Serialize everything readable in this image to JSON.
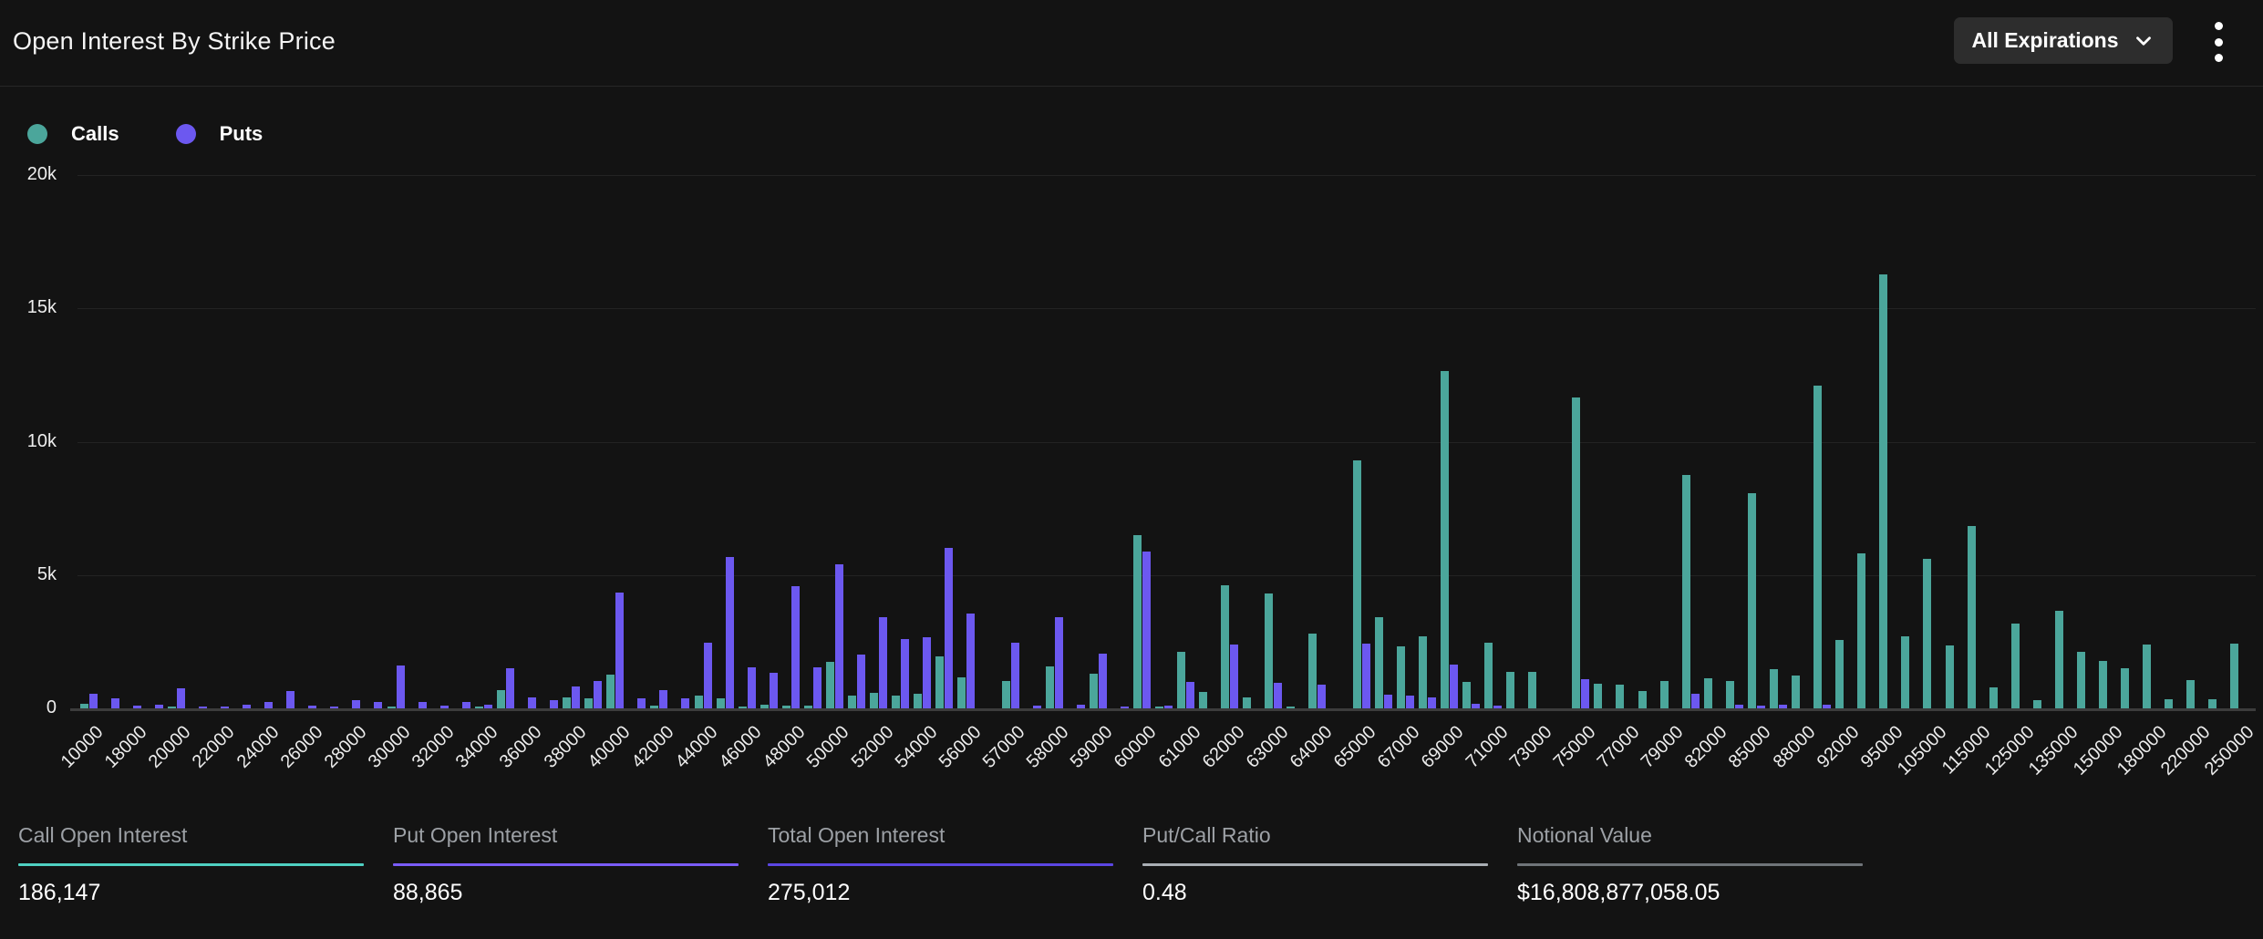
{
  "header": {
    "title": "Open Interest By Strike Price",
    "expirations_label": "All Expirations"
  },
  "legend": [
    {
      "label": "Calls",
      "color": "#4BA69B"
    },
    {
      "label": "Puts",
      "color": "#6C58F0"
    }
  ],
  "chart_data": {
    "type": "bar",
    "title": "Open Interest By Strike Price",
    "xlabel": "Strike Price",
    "ylabel": "Open Interest",
    "ylim": [
      0,
      20000
    ],
    "yticks": [
      "0",
      "5k",
      "10k",
      "15k",
      "20k"
    ],
    "grid": true,
    "legend_position": "top-left",
    "x_label_every": 2,
    "categories": [
      "10000",
      "15000",
      "18000",
      "19000",
      "20000",
      "21000",
      "22000",
      "23000",
      "24000",
      "25000",
      "26000",
      "27000",
      "28000",
      "29000",
      "30000",
      "31000",
      "32000",
      "33000",
      "34000",
      "35000",
      "36000",
      "37000",
      "38000",
      "39000",
      "40000",
      "41000",
      "42000",
      "43000",
      "44000",
      "45000",
      "46000",
      "47000",
      "48000",
      "49000",
      "50000",
      "51000",
      "52000",
      "53000",
      "54000",
      "55000",
      "56000",
      "56500",
      "57000",
      "57500",
      "58000",
      "58500",
      "59000",
      "59500",
      "60000",
      "60500",
      "61000",
      "61500",
      "62000",
      "62500",
      "63000",
      "63500",
      "64000",
      "64500",
      "65000",
      "66000",
      "67000",
      "68000",
      "69000",
      "70000",
      "71000",
      "72000",
      "73000",
      "74000",
      "75000",
      "76000",
      "77000",
      "78000",
      "79000",
      "80000",
      "82000",
      "84000",
      "85000",
      "87000",
      "88000",
      "90000",
      "92000",
      "94000",
      "95000",
      "100000",
      "105000",
      "110000",
      "115000",
      "120000",
      "125000",
      "130000",
      "135000",
      "140000",
      "150000",
      "160000",
      "180000",
      "200000",
      "220000",
      "240000",
      "250000"
    ],
    "series": [
      {
        "name": "Calls",
        "color": "#4BA69B",
        "values": [
          170,
          0,
          0,
          0,
          60,
          0,
          0,
          0,
          0,
          0,
          0,
          0,
          0,
          0,
          60,
          0,
          0,
          0,
          70,
          680,
          0,
          0,
          420,
          390,
          1250,
          0,
          100,
          0,
          480,
          390,
          80,
          140,
          90,
          90,
          1755,
          480,
          580,
          480,
          550,
          1950,
          1170,
          0,
          1030,
          0,
          1570,
          0,
          1300,
          0,
          6500,
          70,
          2130,
          620,
          4620,
          400,
          4310,
          80,
          2820,
          0,
          9290,
          3420,
          2310,
          2700,
          12650,
          980,
          2450,
          1380,
          1380,
          0,
          11650,
          910,
          890,
          640,
          1030,
          8760,
          1140,
          1040,
          8080,
          1480,
          1230,
          12100,
          2580,
          5800,
          16270,
          2700,
          5620,
          2360,
          6840,
          780,
          3180,
          320,
          3660,
          2120,
          1770,
          1520,
          2380,
          350,
          1060,
          350,
          2440
        ]
      },
      {
        "name": "Puts",
        "color": "#6C58F0",
        "values": [
          550,
          390,
          100,
          140,
          740,
          80,
          60,
          130,
          250,
          660,
          115,
          45,
          320,
          250,
          1600,
          250,
          115,
          250,
          150,
          1500,
          400,
          310,
          820,
          1040,
          4340,
          370,
          680,
          370,
          2470,
          5670,
          1540,
          1320,
          4580,
          1550,
          5400,
          2030,
          3430,
          2610,
          2680,
          6010,
          3550,
          0,
          2470,
          90,
          3430,
          150,
          2050,
          80,
          5880,
          90,
          1000,
          0,
          2390,
          0,
          970,
          0,
          900,
          0,
          2430,
          500,
          480,
          400,
          1650,
          170,
          100,
          0,
          0,
          0,
          1080,
          0,
          0,
          0,
          0,
          540,
          0,
          140,
          100,
          140,
          0,
          140,
          0,
          0,
          0,
          0,
          0,
          0,
          0,
          0,
          0,
          0,
          0,
          0,
          0,
          0,
          0,
          0,
          0,
          0,
          0
        ]
      }
    ]
  },
  "stats": [
    {
      "label": "Call Open Interest",
      "value": "186,147",
      "underline_color": "#4FD0C2"
    },
    {
      "label": "Put Open Interest",
      "value": "88,865",
      "underline_color": "#7A5CF8"
    },
    {
      "label": "Total Open Interest",
      "value": "275,012",
      "underline_color": "#5B46E3"
    },
    {
      "label": "Put/Call Ratio",
      "value": "0.48",
      "underline_color": "#A9AEB4"
    },
    {
      "label": "Notional Value",
      "value": "$16,808,877,058.05",
      "underline_color": "#6F7479"
    }
  ]
}
